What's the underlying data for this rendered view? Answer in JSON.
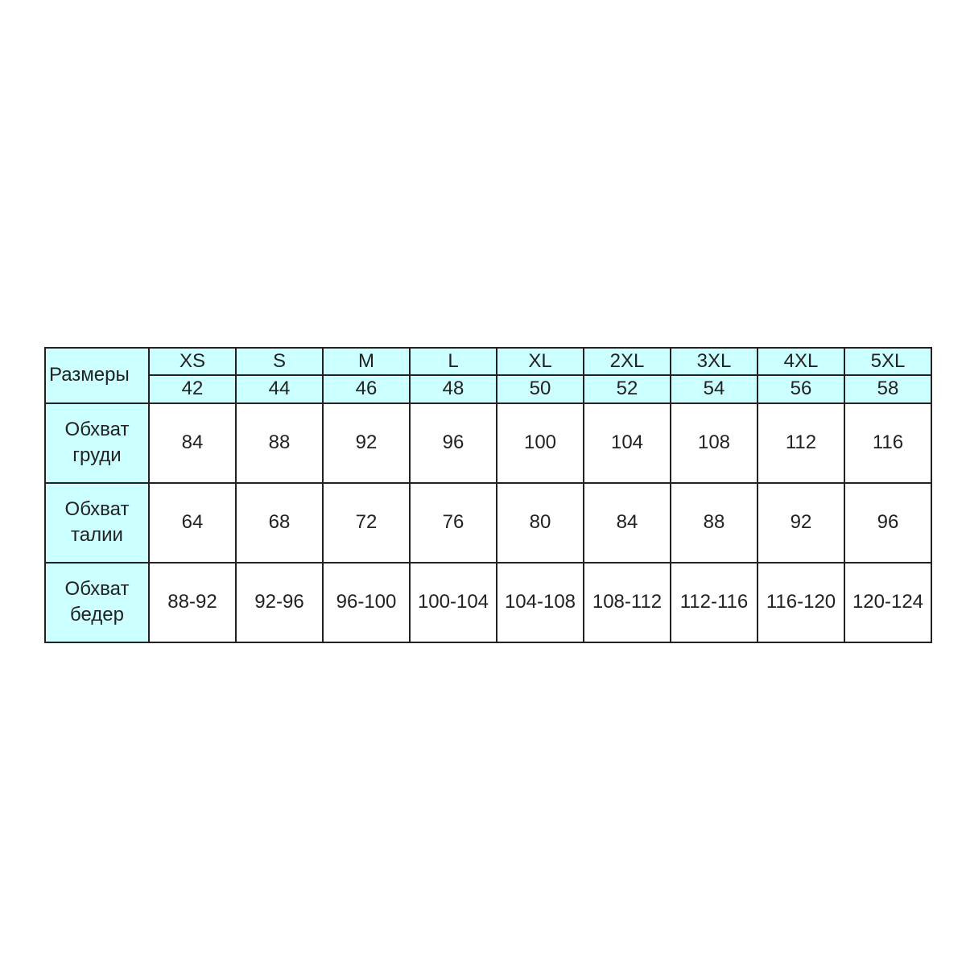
{
  "corner_label": "Размеры",
  "sizes": [
    "XS",
    "S",
    "M",
    "L",
    "XL",
    "2XL",
    "3XL",
    "4XL",
    "5XL"
  ],
  "ru_sizes": [
    "42",
    "44",
    "46",
    "48",
    "50",
    "52",
    "54",
    "56",
    "58"
  ],
  "rows": [
    {
      "label_line1": "Обхват",
      "label_line2": "груди",
      "values": [
        "84",
        "88",
        "92",
        "96",
        "100",
        "104",
        "108",
        "112",
        "116"
      ]
    },
    {
      "label_line1": "Обхват",
      "label_line2": "талии",
      "values": [
        "64",
        "68",
        "72",
        "76",
        "80",
        "84",
        "88",
        "92",
        "96"
      ]
    },
    {
      "label_line1": "Обхват",
      "label_line2": "бедер",
      "values": [
        "88-92",
        "92-96",
        "96-100",
        "100-104",
        "104-108",
        "108-112",
        "112-116",
        "116-120",
        "120-124"
      ]
    }
  ],
  "colors": {
    "corner": "#cc99ff",
    "header": "#ccffff",
    "border": "#222222"
  }
}
